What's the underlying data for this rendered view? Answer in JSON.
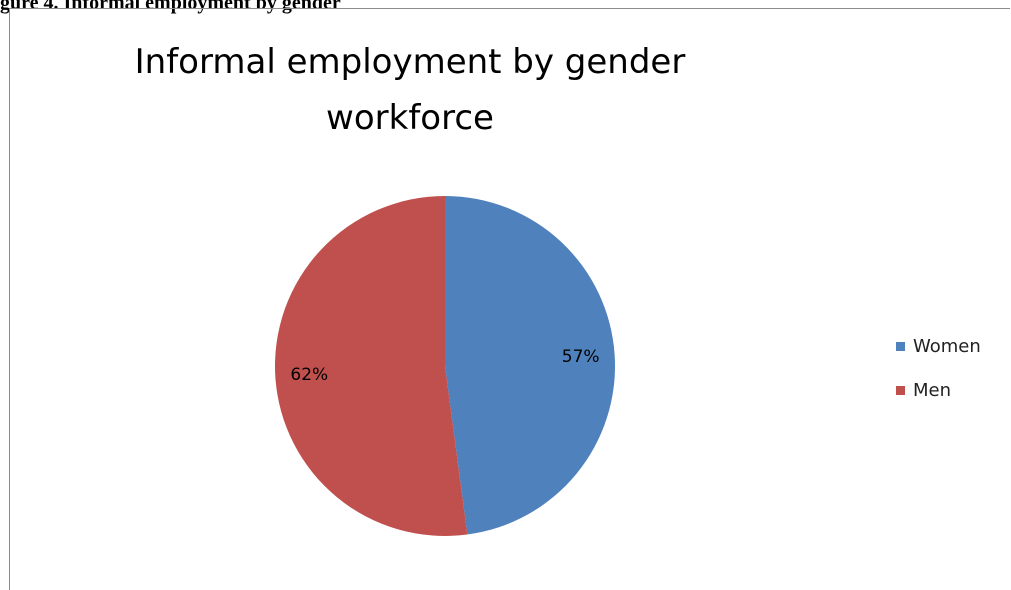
{
  "page": {
    "caption": "gure 4. Informal employment by gender"
  },
  "chart_data": {
    "type": "pie",
    "title": "Informal employment by gender workforce",
    "title_lines": [
      "Informal employment by gender",
      "workforce"
    ],
    "categories": [
      "Women",
      "Men"
    ],
    "values": [
      57,
      62
    ],
    "labels": [
      "57%",
      "62%"
    ],
    "colors": [
      "#4f81bd",
      "#c0504d"
    ],
    "legend_position": "right"
  }
}
